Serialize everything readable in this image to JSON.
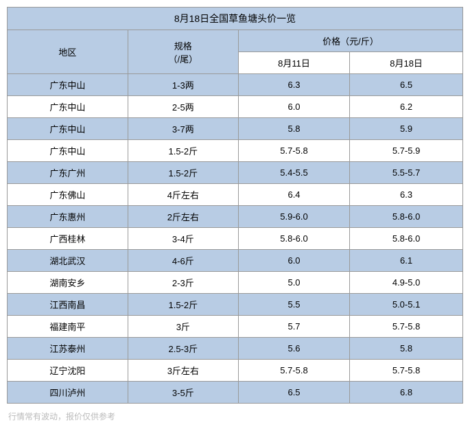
{
  "table": {
    "title": "8月18日全国草鱼塘头价一览",
    "columns": {
      "region": "地区",
      "spec": "规格\n（/尾）",
      "price_header": "价格（元/斤）",
      "date1": "8月11日",
      "date2": "8月18日"
    },
    "rows": [
      {
        "region": "广东中山",
        "spec": "1-3两",
        "p1": "6.3",
        "p2": "6.5"
      },
      {
        "region": "广东中山",
        "spec": "2-5两",
        "p1": "6.0",
        "p2": "6.2"
      },
      {
        "region": "广东中山",
        "spec": "3-7两",
        "p1": "5.8",
        "p2": "5.9"
      },
      {
        "region": "广东中山",
        "spec": "1.5-2斤",
        "p1": "5.7-5.8",
        "p2": "5.7-5.9"
      },
      {
        "region": "广东广州",
        "spec": "1.5-2斤",
        "p1": "5.4-5.5",
        "p2": "5.5-5.7"
      },
      {
        "region": "广东佛山",
        "spec": "4斤左右",
        "p1": "6.4",
        "p2": "6.3"
      },
      {
        "region": "广东惠州",
        "spec": "2斤左右",
        "p1": "5.9-6.0",
        "p2": "5.8-6.0"
      },
      {
        "region": "广西桂林",
        "spec": "3-4斤",
        "p1": "5.8-6.0",
        "p2": "5.8-6.0"
      },
      {
        "region": "湖北武汉",
        "spec": "4-6斤",
        "p1": "6.0",
        "p2": "6.1"
      },
      {
        "region": "湖南安乡",
        "spec": "2-3斤",
        "p1": "5.0",
        "p2": "4.9-5.0"
      },
      {
        "region": "江西南昌",
        "spec": "1.5-2斤",
        "p1": "5.5",
        "p2": "5.0-5.1"
      },
      {
        "region": "福建南平",
        "spec": "3斤",
        "p1": "5.7",
        "p2": "5.7-5.8"
      },
      {
        "region": "江苏泰州",
        "spec": "2.5-3斤",
        "p1": "5.6",
        "p2": "5.8"
      },
      {
        "region": "辽宁沈阳",
        "spec": "3斤左右",
        "p1": "5.7-5.8",
        "p2": "5.7-5.8"
      },
      {
        "region": "四川泸州",
        "spec": "3-5斤",
        "p1": "6.5",
        "p2": "6.8"
      }
    ],
    "colors": {
      "header_bg": "#b8cce4",
      "border": "#999999",
      "alt_row_bg": "#b8cce4",
      "row_bg": "#ffffff"
    },
    "column_widths": [
      "22%",
      "26%",
      "26%",
      "26%"
    ]
  },
  "footnote": "行情常有波动，报价仅供参考"
}
